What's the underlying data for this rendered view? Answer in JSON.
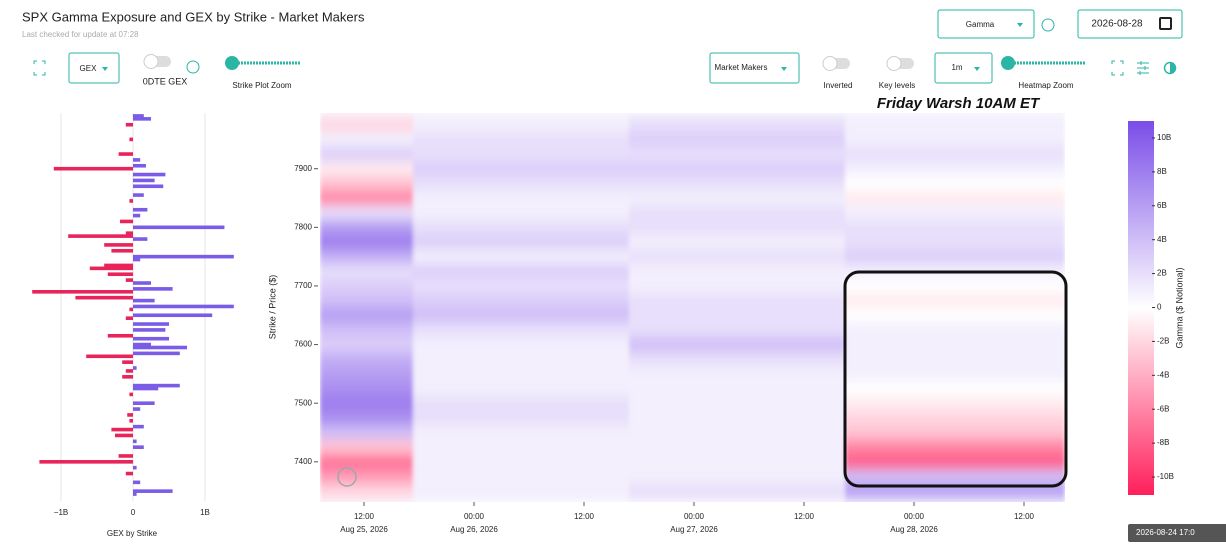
{
  "header": {
    "title": "SPX Gamma Exposure and GEX by Strike - Market Makers",
    "subtitle": "Last checked for update at 07:28"
  },
  "controls": {
    "gamma_select": "Gamma",
    "date": "2026-08-28",
    "gex_select": "GEX",
    "odte_toggle": "0DTE GEX",
    "strike_zoom": "Strike Plot Zoom",
    "mm_select": "Market Makers",
    "inverted": "Inverted",
    "key_levels": "Key levels",
    "interval": "1m",
    "heatmap_zoom": "Heatmap Zoom"
  },
  "tooltip": "2026-08-24 17:0",
  "chart_data": [
    {
      "type": "barh",
      "x_label": "GEX by Strike",
      "colors": {
        "positive": "#7b5ce6",
        "negative": "#e8245a"
      },
      "xlim": [
        -1.5,
        1.5
      ],
      "xticks": [
        {
          "value": -1,
          "label": "−1B"
        },
        0,
        {
          "value": 1,
          "label": "1B"
        }
      ],
      "grid": true,
      "ylim": [
        7340,
        7995
      ],
      "strikes": [
        7990,
        7985,
        7975,
        7950,
        7925,
        7915,
        7905,
        7900,
        7890,
        7880,
        7870,
        7855,
        7845,
        7830,
        7820,
        7810,
        7800,
        7790,
        7785,
        7780,
        7770,
        7760,
        7750,
        7745,
        7735,
        7730,
        7720,
        7710,
        7705,
        7695,
        7690,
        7680,
        7675,
        7665,
        7660,
        7650,
        7645,
        7635,
        7625,
        7615,
        7610,
        7600,
        7595,
        7585,
        7580,
        7570,
        7560,
        7555,
        7545,
        7530,
        7525,
        7515,
        7500,
        7490,
        7480,
        7470,
        7460,
        7455,
        7445,
        7435,
        7425,
        7410,
        7400,
        7390,
        7380,
        7365,
        7350,
        7345
      ],
      "values": [
        0.15,
        0.25,
        -0.1,
        -0.05,
        -0.2,
        0.1,
        0.18,
        -1.1,
        0.45,
        0.3,
        0.42,
        0.15,
        -0.05,
        0.2,
        0.1,
        -0.18,
        1.27,
        -0.1,
        -0.9,
        0.2,
        -0.4,
        -0.3,
        1.4,
        0.1,
        -0.4,
        -0.6,
        -0.35,
        -0.1,
        0.25,
        0.55,
        -1.4,
        -0.8,
        0.3,
        1.4,
        -0.05,
        1.1,
        -0.1,
        0.5,
        0.45,
        -0.35,
        0.5,
        0.25,
        0.75,
        0.65,
        -0.65,
        -0.15,
        0.05,
        -0.1,
        -0.15,
        0.65,
        0.35,
        -0.05,
        0.3,
        0.1,
        -0.08,
        -0.05,
        0.15,
        -0.3,
        -0.25,
        0.05,
        0.15,
        -0.2,
        -1.3,
        0.05,
        -0.1,
        0.1,
        0.55,
        0.05
      ]
    },
    {
      "type": "heatmap",
      "annotation": "Friday Warsh 10AM ET",
      "y_label": "Strike / Price ($)",
      "ylim": [
        7340,
        7995
      ],
      "yticks": [
        7400,
        7500,
        7600,
        7700,
        7800,
        7900
      ],
      "xticks": [
        {
          "time": "12:00",
          "date": "Aug 25, 2026"
        },
        {
          "time": "00:00",
          "date": "Aug 26, 2026"
        },
        {
          "time": "12:00"
        },
        {
          "time": "00:00",
          "date": "Aug 27, 2026"
        },
        {
          "time": "12:00"
        },
        {
          "time": "00:00",
          "date": "Aug 28, 2026"
        },
        {
          "time": "12:00"
        }
      ],
      "strikes": [
        7975,
        7950,
        7925,
        7900,
        7875,
        7850,
        7825,
        7800,
        7775,
        7750,
        7725,
        7700,
        7675,
        7650,
        7625,
        7600,
        7575,
        7550,
        7525,
        7500,
        7475,
        7450,
        7425,
        7400,
        7375,
        7350
      ],
      "values": [
        [
          -2,
          1,
          3,
          -1,
          -3,
          -6,
          2,
          6,
          8,
          5,
          2,
          3,
          4,
          6,
          4,
          3,
          5,
          6,
          7,
          8,
          7,
          4,
          -3,
          -7,
          -5,
          -2
        ],
        [
          1,
          2,
          2,
          3,
          2,
          1,
          1,
          2,
          3,
          1,
          3,
          2,
          3,
          4,
          2,
          1,
          1,
          1,
          1,
          2,
          2,
          1,
          1,
          1,
          1,
          1
        ],
        [
          2,
          3,
          2,
          3,
          2,
          1,
          2,
          2,
          1,
          2,
          1,
          1,
          2,
          2,
          2,
          4,
          2,
          1,
          1,
          1,
          1,
          1,
          1,
          1,
          1,
          2
        ],
        [
          1,
          1,
          2,
          1,
          0,
          -1,
          1,
          2,
          2,
          3,
          1,
          0,
          -1,
          0,
          1,
          1,
          1,
          1,
          0,
          -1,
          -2,
          -3,
          -6,
          -8,
          4,
          6
        ]
      ],
      "colorscale": [
        "#ff1f5b",
        "#ffffff",
        "#7a4de8"
      ],
      "colorbar": {
        "label": "Gamma ($ Notional)",
        "lim": [
          -11,
          11
        ],
        "ticks": [
          {
            "value": 10,
            "label": "10B"
          },
          {
            "value": 8,
            "label": "8B"
          },
          {
            "value": 6,
            "label": "6B"
          },
          {
            "value": 4,
            "label": "4B"
          },
          {
            "value": 2,
            "label": "2B"
          },
          0,
          {
            "value": -2,
            "label": "-2B"
          },
          {
            "value": -4,
            "label": "-4B"
          },
          {
            "value": -6,
            "label": "-6B"
          },
          {
            "value": -8,
            "label": "-8B"
          },
          {
            "value": -10,
            "label": "-10B"
          }
        ]
      }
    }
  ]
}
